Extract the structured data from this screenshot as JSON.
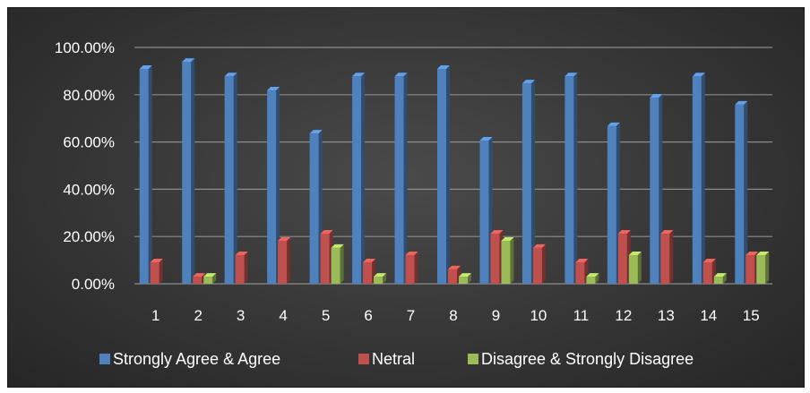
{
  "chart_data": {
    "type": "bar",
    "categories": [
      "1",
      "2",
      "3",
      "4",
      "5",
      "6",
      "7",
      "8",
      "9",
      "10",
      "11",
      "12",
      "13",
      "14",
      "15"
    ],
    "series": [
      {
        "name": "Strongly Agree & Agree",
        "color": "#4f81bd",
        "values": [
          90.9,
          93.9,
          87.8,
          81.8,
          63.6,
          87.8,
          87.8,
          90.9,
          60.6,
          84.8,
          87.8,
          66.7,
          78.8,
          87.8,
          75.8
        ]
      },
      {
        "name": "Netral",
        "color": "#c0504d",
        "values": [
          9.1,
          3.0,
          12.1,
          18.2,
          21.2,
          9.1,
          12.1,
          6.1,
          21.2,
          15.2,
          9.1,
          21.2,
          21.2,
          9.1,
          12.1
        ]
      },
      {
        "name": "Disagree & Strongly Disagree",
        "color": "#9bbb59",
        "values": [
          0.0,
          3.0,
          0.0,
          0.0,
          15.2,
          3.0,
          0.0,
          3.0,
          18.2,
          0.0,
          3.0,
          12.1,
          0.0,
          3.0,
          12.1
        ]
      }
    ],
    "yticks": [
      "0.00%",
      "20.00%",
      "40.00%",
      "60.00%",
      "80.00%",
      "100.00%"
    ],
    "ylim": [
      0,
      100
    ],
    "grid": true,
    "legend": "bottom"
  }
}
